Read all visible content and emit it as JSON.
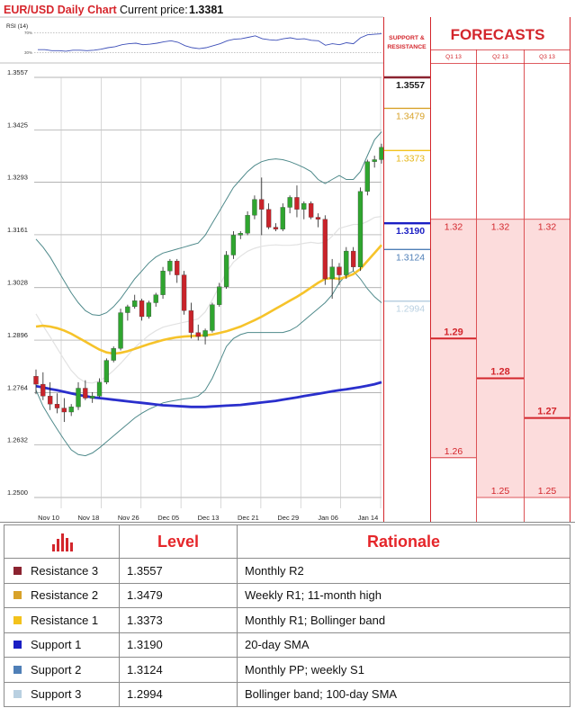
{
  "header": {
    "title": "EUR/USD Daily Chart",
    "price_label": "Current price:",
    "price_value": "1.3381"
  },
  "rsi_panel": {
    "label": "RSI (14)",
    "upper": "70%",
    "lower": "30%"
  },
  "forecast_panel": {
    "sr_label": [
      "SUPPORT &",
      "RESISTANCE"
    ],
    "title": "FORECASTS",
    "columns": [
      "Q1 13",
      "Q2 13",
      "Q3 13"
    ]
  },
  "levels": [
    {
      "name": "Resistance 3",
      "value": "1.3557",
      "rationale": "Monthly R2",
      "color": "#8b2330"
    },
    {
      "name": "Resistance 2",
      "value": "1.3479",
      "rationale": "Weekly R1; 11-month high",
      "color": "#d8a22a"
    },
    {
      "name": "Resistance 1",
      "value": "1.3373",
      "rationale": "Monthly R1; Bollinger band",
      "color": "#f3c21c"
    },
    {
      "name": "Support 1",
      "value": "1.3190",
      "rationale": "20-day SMA",
      "color": "#1a1ec4"
    },
    {
      "name": "Support 2",
      "value": "1.3124",
      "rationale": "Monthly PP; weekly S1",
      "color": "#4f7fb7"
    },
    {
      "name": "Support 3",
      "value": "1.2994",
      "rationale": "Bollinger band; 100-day SMA",
      "color": "#b9d0e1"
    }
  ],
  "table": {
    "col_level": "Level",
    "col_rationale": "Rationale"
  },
  "forecasts": [
    {
      "col": 0,
      "values": [
        {
          "v": 1.32,
          "label": "1.32",
          "bold": false
        },
        {
          "v": 1.29,
          "label": "1.29",
          "bold": true
        },
        {
          "v": 1.26,
          "label": "1.26",
          "bold": false
        }
      ]
    },
    {
      "col": 1,
      "values": [
        {
          "v": 1.32,
          "label": "1.32",
          "bold": false
        },
        {
          "v": 1.28,
          "label": "1.28",
          "bold": true
        },
        {
          "v": 1.25,
          "label": "1.25",
          "bold": false
        }
      ]
    },
    {
      "col": 2,
      "values": [
        {
          "v": 1.32,
          "label": "1.32",
          "bold": false
        },
        {
          "v": 1.27,
          "label": "1.27",
          "bold": true
        },
        {
          "v": 1.25,
          "label": "1.25",
          "bold": false
        }
      ]
    }
  ],
  "chart_data": {
    "type": "candlestick",
    "title": "EUR/USD Daily Chart",
    "ylim": [
      1.25,
      1.3557
    ],
    "y_ticks": [
      "1.3557",
      "1.3425",
      "1.3293",
      "1.3161",
      "1.3028",
      "1.2896",
      "1.2764",
      "1.2632",
      "1.2500"
    ],
    "x_ticks": [
      "Nov 10",
      "Nov 18",
      "Nov 26",
      "Dec 05",
      "Dec 13",
      "Dec 21",
      "Dec 29",
      "Jan 06",
      "Jan 14"
    ],
    "candles": [
      [
        1.2805,
        1.2822,
        1.276,
        1.2785
      ],
      [
        1.2785,
        1.2815,
        1.2745,
        1.2755
      ],
      [
        1.2755,
        1.279,
        1.272,
        1.2735
      ],
      [
        1.2735,
        1.2762,
        1.2712,
        1.2725
      ],
      [
        1.2725,
        1.275,
        1.269,
        1.2715
      ],
      [
        1.2715,
        1.2735,
        1.2705,
        1.2728
      ],
      [
        1.2728,
        1.279,
        1.272,
        1.2775
      ],
      [
        1.2775,
        1.2795,
        1.2745,
        1.275
      ],
      [
        1.275,
        1.2765,
        1.2738,
        1.2755
      ],
      [
        1.2755,
        1.28,
        1.2752,
        1.279
      ],
      [
        1.279,
        1.285,
        1.2785,
        1.2845
      ],
      [
        1.2845,
        1.288,
        1.284,
        1.2875
      ],
      [
        1.2875,
        1.2975,
        1.287,
        1.2965
      ],
      [
        1.2965,
        1.2985,
        1.2945,
        1.298
      ],
      [
        1.298,
        1.301,
        1.2975,
        1.2995
      ],
      [
        1.2995,
        1.3,
        1.2945,
        1.2955
      ],
      [
        1.2955,
        1.2995,
        1.295,
        1.299
      ],
      [
        1.299,
        1.3015,
        1.298,
        1.301
      ],
      [
        1.301,
        1.308,
        1.3,
        1.307
      ],
      [
        1.307,
        1.31,
        1.306,
        1.3095
      ],
      [
        1.3095,
        1.31,
        1.304,
        1.306
      ],
      [
        1.306,
        1.307,
        1.296,
        1.297
      ],
      [
        1.297,
        1.299,
        1.29,
        1.2915
      ],
      [
        1.2915,
        1.2935,
        1.2895,
        1.2905
      ],
      [
        1.2905,
        1.2925,
        1.2885,
        1.292
      ],
      [
        1.292,
        1.299,
        1.2915,
        1.2985
      ],
      [
        1.2985,
        1.304,
        1.298,
        1.303
      ],
      [
        1.303,
        1.312,
        1.3025,
        1.311
      ],
      [
        1.311,
        1.317,
        1.31,
        1.316
      ],
      [
        1.316,
        1.317,
        1.315,
        1.3165
      ],
      [
        1.3165,
        1.322,
        1.316,
        1.321
      ],
      [
        1.321,
        1.326,
        1.32,
        1.325
      ],
      [
        1.325,
        1.3305,
        1.316,
        1.3225
      ],
      [
        1.3225,
        1.324,
        1.3175,
        1.318
      ],
      [
        1.318,
        1.319,
        1.317,
        1.3175
      ],
      [
        1.3175,
        1.324,
        1.317,
        1.323
      ],
      [
        1.323,
        1.326,
        1.3215,
        1.3255
      ],
      [
        1.3255,
        1.3285,
        1.3205,
        1.3225
      ],
      [
        1.3225,
        1.3245,
        1.32,
        1.324
      ],
      [
        1.324,
        1.3245,
        1.32,
        1.3205
      ],
      [
        1.3205,
        1.3215,
        1.318,
        1.32
      ],
      [
        1.32,
        1.321,
        1.3035,
        1.305
      ],
      [
        1.305,
        1.31,
        1.3,
        1.308
      ],
      [
        1.308,
        1.309,
        1.3035,
        1.306
      ],
      [
        1.306,
        1.313,
        1.305,
        1.312
      ],
      [
        1.312,
        1.313,
        1.307,
        1.308
      ],
      [
        1.308,
        1.328,
        1.307,
        1.327
      ],
      [
        1.327,
        1.335,
        1.326,
        1.3345
      ],
      [
        1.3345,
        1.336,
        1.333,
        1.335
      ],
      [
        1.335,
        1.339,
        1.334,
        1.3381
      ]
    ],
    "sma_100": [
      1.278,
      1.2777,
      1.2773,
      1.277,
      1.2766,
      1.2762,
      1.2758,
      1.2755,
      1.2752,
      1.275,
      1.2748,
      1.2746,
      1.2744,
      1.2742,
      1.274,
      1.2738,
      1.2736,
      1.2734,
      1.2732,
      1.2731,
      1.273,
      1.2729,
      1.2728,
      1.2728,
      1.2728,
      1.2729,
      1.273,
      1.2731,
      1.2732,
      1.2733,
      1.2735,
      1.2737,
      1.2739,
      1.2741,
      1.2743,
      1.2746,
      1.2749,
      1.2752,
      1.2755,
      1.2758,
      1.2761,
      1.2764,
      1.2767,
      1.277,
      1.2772,
      1.2775,
      1.2778,
      1.2781,
      1.2785,
      1.279
    ],
    "sma_20": [
      1.293,
      1.2932,
      1.293,
      1.2926,
      1.292,
      1.2912,
      1.2902,
      1.2892,
      1.2882,
      1.2872,
      1.2865,
      1.2862,
      1.2864,
      1.2868,
      1.2874,
      1.288,
      1.2886,
      1.2891,
      1.2896,
      1.29,
      1.2903,
      1.2905,
      1.2906,
      1.2907,
      1.2908,
      1.291,
      1.2914,
      1.2918,
      1.2924,
      1.293,
      1.2938,
      1.2946,
      1.2955,
      1.2965,
      1.2975,
      1.2985,
      1.2995,
      1.3005,
      1.3016,
      1.3028,
      1.304,
      1.305,
      1.3052,
      1.305,
      1.3055,
      1.3062,
      1.3075,
      1.3095,
      1.3115,
      1.3135
    ],
    "bb_upper": [
      1.315,
      1.313,
      1.3105,
      1.3075,
      1.3045,
      1.3015,
      1.299,
      1.297,
      1.296,
      1.2958,
      1.2965,
      1.298,
      1.3,
      1.3025,
      1.305,
      1.307,
      1.309,
      1.3105,
      1.3115,
      1.312,
      1.3125,
      1.313,
      1.3135,
      1.314,
      1.316,
      1.319,
      1.322,
      1.325,
      1.328,
      1.33,
      1.332,
      1.3335,
      1.3345,
      1.335,
      1.3352,
      1.335,
      1.3345,
      1.3338,
      1.333,
      1.332,
      1.33,
      1.329,
      1.33,
      1.331,
      1.33,
      1.33,
      1.332,
      1.336,
      1.34,
      1.342
    ],
    "bb_lower": [
      1.277,
      1.273,
      1.27,
      1.2672,
      1.2645,
      1.262,
      1.2608,
      1.2605,
      1.2612,
      1.2625,
      1.264,
      1.2655,
      1.267,
      1.2685,
      1.27,
      1.2712,
      1.2722,
      1.273,
      1.2738,
      1.2742,
      1.2745,
      1.2748,
      1.275,
      1.2755,
      1.277,
      1.28,
      1.284,
      1.288,
      1.29,
      1.291,
      1.2915,
      1.2915,
      1.2915,
      1.2915,
      1.2915,
      1.2915,
      1.292,
      1.293,
      1.2945,
      1.296,
      1.2975,
      1.299,
      1.301,
      1.304,
      1.306,
      1.307,
      1.305,
      1.3025,
      1.3005,
      1.299
    ],
    "rsi": [
      36,
      36,
      34,
      34,
      33,
      35,
      35,
      34,
      35,
      37,
      40,
      42,
      46,
      48,
      49,
      46,
      47,
      49,
      52,
      54,
      51,
      44,
      40,
      38,
      40,
      44,
      48,
      54,
      57,
      58,
      61,
      64,
      58,
      56,
      55,
      58,
      60,
      57,
      58,
      55,
      54,
      45,
      48,
      46,
      50,
      48,
      60,
      66,
      67,
      68
    ]
  }
}
